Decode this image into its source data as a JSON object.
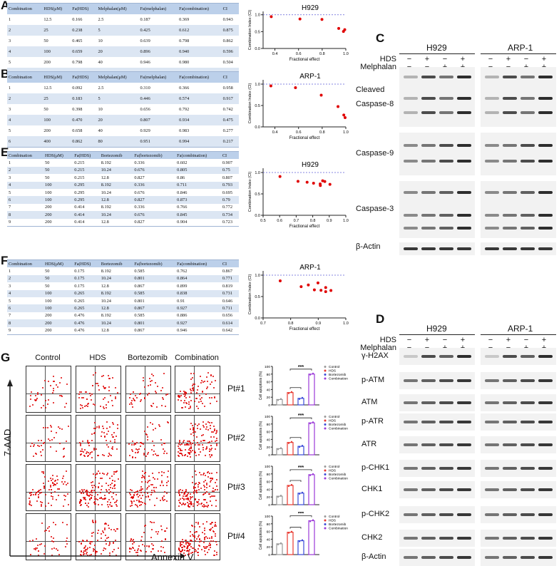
{
  "panels": {
    "A": "A",
    "B": "B",
    "C": "C",
    "D": "D",
    "E": "E",
    "F": "F",
    "G": "G"
  },
  "tables": {
    "A": {
      "headers": [
        "Combination",
        "HDS(μM)",
        "Fa(HDS)",
        "Melphalan(μM)",
        "Fa(melphalan)",
        "Fa(combination)",
        "CI"
      ],
      "rows": [
        [
          "1",
          "12.5",
          "0.166",
          "2.5",
          "0.187",
          "0.369",
          "0.943"
        ],
        [
          "2",
          "25",
          "0.238",
          "5",
          "0.425",
          "0.612",
          "0.875"
        ],
        [
          "3",
          "50",
          "0.465",
          "10",
          "0.639",
          "0.798",
          "0.862"
        ],
        [
          "4",
          "100",
          "0.659",
          "20",
          "0.896",
          "0.940",
          "0.596"
        ],
        [
          "5",
          "200",
          "0.798",
          "40",
          "0.946",
          "0.980",
          "0.504"
        ],
        [
          "6",
          "400",
          "0.916",
          "80",
          "0.950",
          "0.991",
          "0.559"
        ]
      ]
    },
    "B": {
      "headers": [
        "Combination",
        "HDS(μM)",
        "Fa(HDS)",
        "Melphalan(μM)",
        "Fa(melphalan)",
        "Fa(combination)",
        "CI"
      ],
      "rows": [
        [
          "1",
          "12.5",
          "0.092",
          "2.5",
          "0.310",
          "0.366",
          "0.958"
        ],
        [
          "2",
          "25",
          "0.183",
          "5",
          "0.446",
          "0.574",
          "0.917"
        ],
        [
          "3",
          "50",
          "0.398",
          "10",
          "0.656",
          "0.792",
          "0.742"
        ],
        [
          "4",
          "100",
          "0.470",
          "20",
          "0.807",
          "0.934",
          "0.475"
        ],
        [
          "5",
          "200",
          "0.658",
          "40",
          "0.929",
          "0.983",
          "0.277"
        ],
        [
          "6",
          "400",
          "0.862",
          "80",
          "0.951",
          "0.994",
          "0.217"
        ]
      ]
    },
    "E": {
      "headers": [
        "Combination",
        "HDS(μM)",
        "Fa(HDS)",
        "Bortezomib",
        "Fa(bortezomib)",
        "Fa(combination)",
        "CI"
      ],
      "rows": [
        [
          "1",
          "50",
          "0.215",
          "8.192",
          "0.336",
          "0.602",
          "0.907"
        ],
        [
          "2",
          "50",
          "0.215",
          "10.24",
          "0.676",
          "0.805",
          "0.75"
        ],
        [
          "3",
          "50",
          "0.215",
          "12.8",
          "0.827",
          "0.86",
          "0.807"
        ],
        [
          "4",
          "100",
          "0.295",
          "8.192",
          "0.336",
          "0.711",
          "0.793"
        ],
        [
          "5",
          "100",
          "0.295",
          "10.24",
          "0.676",
          "0.846",
          "0.695"
        ],
        [
          "6",
          "100",
          "0.295",
          "12.8",
          "0.827",
          "0.873",
          "0.79"
        ],
        [
          "7",
          "200",
          "0.414",
          "8.192",
          "0.336",
          "0.766",
          "0.772"
        ],
        [
          "8",
          "200",
          "0.414",
          "10.24",
          "0.676",
          "0.845",
          "0.734"
        ],
        [
          "9",
          "200",
          "0.414",
          "12.8",
          "0.827",
          "0.904",
          "0.723"
        ]
      ]
    },
    "F": {
      "headers": [
        "Combination",
        "HDS(μM)",
        "Fa(HDS)",
        "Bortezomib",
        "Fa(bortezomib)",
        "Fa(combination)",
        "CI"
      ],
      "rows": [
        [
          "1",
          "50",
          "0.175",
          "8.192",
          "0.585",
          "0.762",
          "0.867"
        ],
        [
          "2",
          "50",
          "0.175",
          "10.24",
          "0.801",
          "0.864",
          "0.771"
        ],
        [
          "3",
          "50",
          "0.175",
          "12.8",
          "0.867",
          "0.899",
          "0.819"
        ],
        [
          "4",
          "100",
          "0.265",
          "8.192",
          "0.585",
          "0.838",
          "0.731"
        ],
        [
          "5",
          "100",
          "0.265",
          "10.24",
          "0.801",
          "0.91",
          "0.646"
        ],
        [
          "6",
          "100",
          "0.265",
          "12.8",
          "0.867",
          "0.927",
          "0.711"
        ],
        [
          "7",
          "200",
          "0.476",
          "8.192",
          "0.585",
          "0.886",
          "0.656"
        ],
        [
          "8",
          "200",
          "0.476",
          "10.24",
          "0.801",
          "0.927",
          "0.614"
        ],
        [
          "9",
          "200",
          "0.476",
          "12.8",
          "0.867",
          "0.946",
          "0.642"
        ]
      ]
    }
  },
  "chart_data": [
    {
      "id": "A",
      "type": "scatter",
      "title": "H929",
      "xlabel": "Fractional effect",
      "ylabel": "Combination Index (CI)",
      "xlim": [
        0.3,
        1.0
      ],
      "ylim": [
        0,
        1.1
      ],
      "xticks": [
        "0.4",
        "0.6",
        "0.8",
        "1.0"
      ],
      "yticks": [
        "0.0",
        "0.5",
        "1.0"
      ],
      "refline": 1.0,
      "x": [
        0.369,
        0.612,
        0.798,
        0.94,
        0.98,
        0.991
      ],
      "y": [
        0.943,
        0.875,
        0.862,
        0.596,
        0.504,
        0.559
      ]
    },
    {
      "id": "B",
      "type": "scatter",
      "title": "ARP-1",
      "xlabel": "Fractional effect",
      "ylabel": "Combination Index (CI)",
      "xlim": [
        0.3,
        1.0
      ],
      "ylim": [
        0,
        1.1
      ],
      "xticks": [
        "0.4",
        "0.6",
        "0.8",
        "1.0"
      ],
      "yticks": [
        "0.0",
        "0.5",
        "1.0"
      ],
      "refline": 1.0,
      "x": [
        0.366,
        0.574,
        0.792,
        0.934,
        0.983,
        0.994
      ],
      "y": [
        0.958,
        0.917,
        0.742,
        0.475,
        0.277,
        0.217
      ]
    },
    {
      "id": "E",
      "type": "scatter",
      "title": "H929",
      "xlabel": "Fractional effect",
      "ylabel": "Combination Index (CI)",
      "xlim": [
        0.5,
        1.0
      ],
      "ylim": [
        0,
        1.1
      ],
      "xticks": [
        "0.5",
        "0.6",
        "0.7",
        "0.8",
        "0.9",
        "1.0"
      ],
      "yticks": [
        "0.0",
        "0.5",
        "1.0"
      ],
      "refline": 1.0,
      "x": [
        0.602,
        0.805,
        0.86,
        0.711,
        0.846,
        0.873,
        0.766,
        0.845,
        0.904
      ],
      "y": [
        0.907,
        0.75,
        0.807,
        0.793,
        0.695,
        0.79,
        0.772,
        0.734,
        0.723
      ]
    },
    {
      "id": "F",
      "type": "scatter",
      "title": "ARP-1",
      "xlabel": "Fractional effect",
      "ylabel": "Combination Index (CI)",
      "xlim": [
        0.7,
        1.0
      ],
      "ylim": [
        0,
        1.1
      ],
      "xticks": [
        "0.7",
        "0.8",
        "0.9",
        "1.0"
      ],
      "yticks": [
        "0.0",
        "0.5",
        "1.0"
      ],
      "refline": 1.0,
      "x": [
        0.762,
        0.864,
        0.899,
        0.838,
        0.91,
        0.927,
        0.886,
        0.927,
        0.946
      ],
      "y": [
        0.867,
        0.771,
        0.819,
        0.731,
        0.646,
        0.711,
        0.656,
        0.614,
        0.642
      ]
    },
    {
      "id": "G1",
      "type": "bar",
      "title": "Pt#1",
      "ylabel": "Cell apoptosis (%)",
      "ylim": [
        0,
        100
      ],
      "yticks": [
        "0",
        "20",
        "40",
        "60",
        "80",
        "100"
      ],
      "categories": [
        "Control",
        "HDS",
        "Bortezomib",
        "Combination"
      ],
      "values": [
        14,
        32,
        17,
        80
      ],
      "significance": "***"
    },
    {
      "id": "G2",
      "type": "bar",
      "title": "Pt#2",
      "ylabel": "Cell apoptosis (%)",
      "ylim": [
        0,
        100
      ],
      "yticks": [
        "0",
        "20",
        "40",
        "60",
        "80",
        "100"
      ],
      "categories": [
        "Control",
        "HDS",
        "Bortezomib",
        "Combination"
      ],
      "values": [
        16,
        32,
        22,
        83
      ],
      "significance": "***"
    },
    {
      "id": "G3",
      "type": "bar",
      "title": "Pt#3",
      "ylabel": "Cell apoptosis (%)",
      "ylim": [
        0,
        100
      ],
      "yticks": [
        "0",
        "20",
        "40",
        "60",
        "80",
        "100"
      ],
      "categories": [
        "Control",
        "HDS",
        "Bortezomib",
        "Combination"
      ],
      "values": [
        22,
        50,
        30,
        78
      ],
      "significance": "***"
    },
    {
      "id": "G4",
      "type": "bar",
      "title": "Pt#4",
      "ylabel": "Cell apoptosis (%)",
      "ylim": [
        0,
        100
      ],
      "yticks": [
        "0",
        "20",
        "40",
        "60",
        "80",
        "100"
      ],
      "categories": [
        "Control",
        "HDS",
        "Bortezomib",
        "Combination"
      ],
      "values": [
        28,
        58,
        36,
        88
      ],
      "significance": "***"
    }
  ],
  "legend_colors": {
    "Control": "#999999",
    "HDS": "#e8382f",
    "Bortezomib": "#3a4ad8",
    "Combination": "#9b3ad8"
  },
  "westernC": {
    "cells": [
      "H929",
      "ARP-1"
    ],
    "treatments": [
      {
        "name": "HDS",
        "signs": [
          "−",
          "+",
          "−",
          "+"
        ]
      },
      {
        "name": "Melphalan",
        "signs": [
          "−",
          "−",
          "+",
          "+"
        ]
      }
    ],
    "labels": [
      "Cleaved",
      "Caspase-8",
      "Caspase-9",
      "Caspase-3",
      "β-Actin"
    ]
  },
  "westernD": {
    "cells": [
      "H929",
      "ARP-1"
    ],
    "treatments": [
      {
        "name": "HDS",
        "signs": [
          "−",
          "+",
          "−",
          "+"
        ]
      },
      {
        "name": "Melphalan",
        "signs": [
          "−",
          "−",
          "+",
          "+"
        ]
      }
    ],
    "labels": [
      "γ-H2AX",
      "p-ATM",
      "ATM",
      "p-ATR",
      "ATR",
      "p-CHK1",
      "CHK1",
      "p-CHK2",
      "CHK2",
      "β-Actin"
    ]
  },
  "flow": {
    "columns": [
      "Control",
      "HDS",
      "Bortezomib",
      "Combination"
    ],
    "patients": [
      "Pt#1",
      "Pt#2",
      "Pt#3",
      "Pt#4"
    ],
    "yaxis": "7-AAD",
    "xaxis": "Annexin V"
  }
}
